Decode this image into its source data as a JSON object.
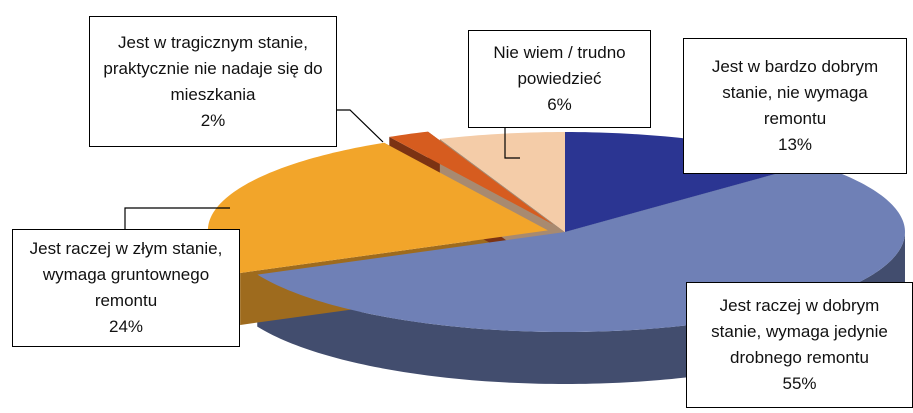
{
  "chart_data": {
    "type": "pie3d",
    "categories": [
      "Jest w bardzo dobrym stanie, nie wymaga remontu",
      "Jest raczej w dobrym stanie, wymaga jedynie drobnego remontu",
      "Jest raczej w złym stanie, wymaga gruntownego remontu",
      "Jest w tragicznym stanie, praktycznie nie nadaje się do mieszkania",
      "Nie wiem / trudno powiedzieć"
    ],
    "values": [
      13,
      55,
      24,
      2,
      6
    ],
    "value_labels": [
      "13%",
      "55%",
      "24%",
      "2%",
      "6%"
    ],
    "colors": [
      "#2b3592",
      "#6f80b6",
      "#f2a52a",
      "#d65c1f",
      "#f4cca8"
    ],
    "side_colors": [
      "#1b2260",
      "#424d6e",
      "#9e6b1e",
      "#7c3313",
      "#a88a70"
    ]
  }
}
